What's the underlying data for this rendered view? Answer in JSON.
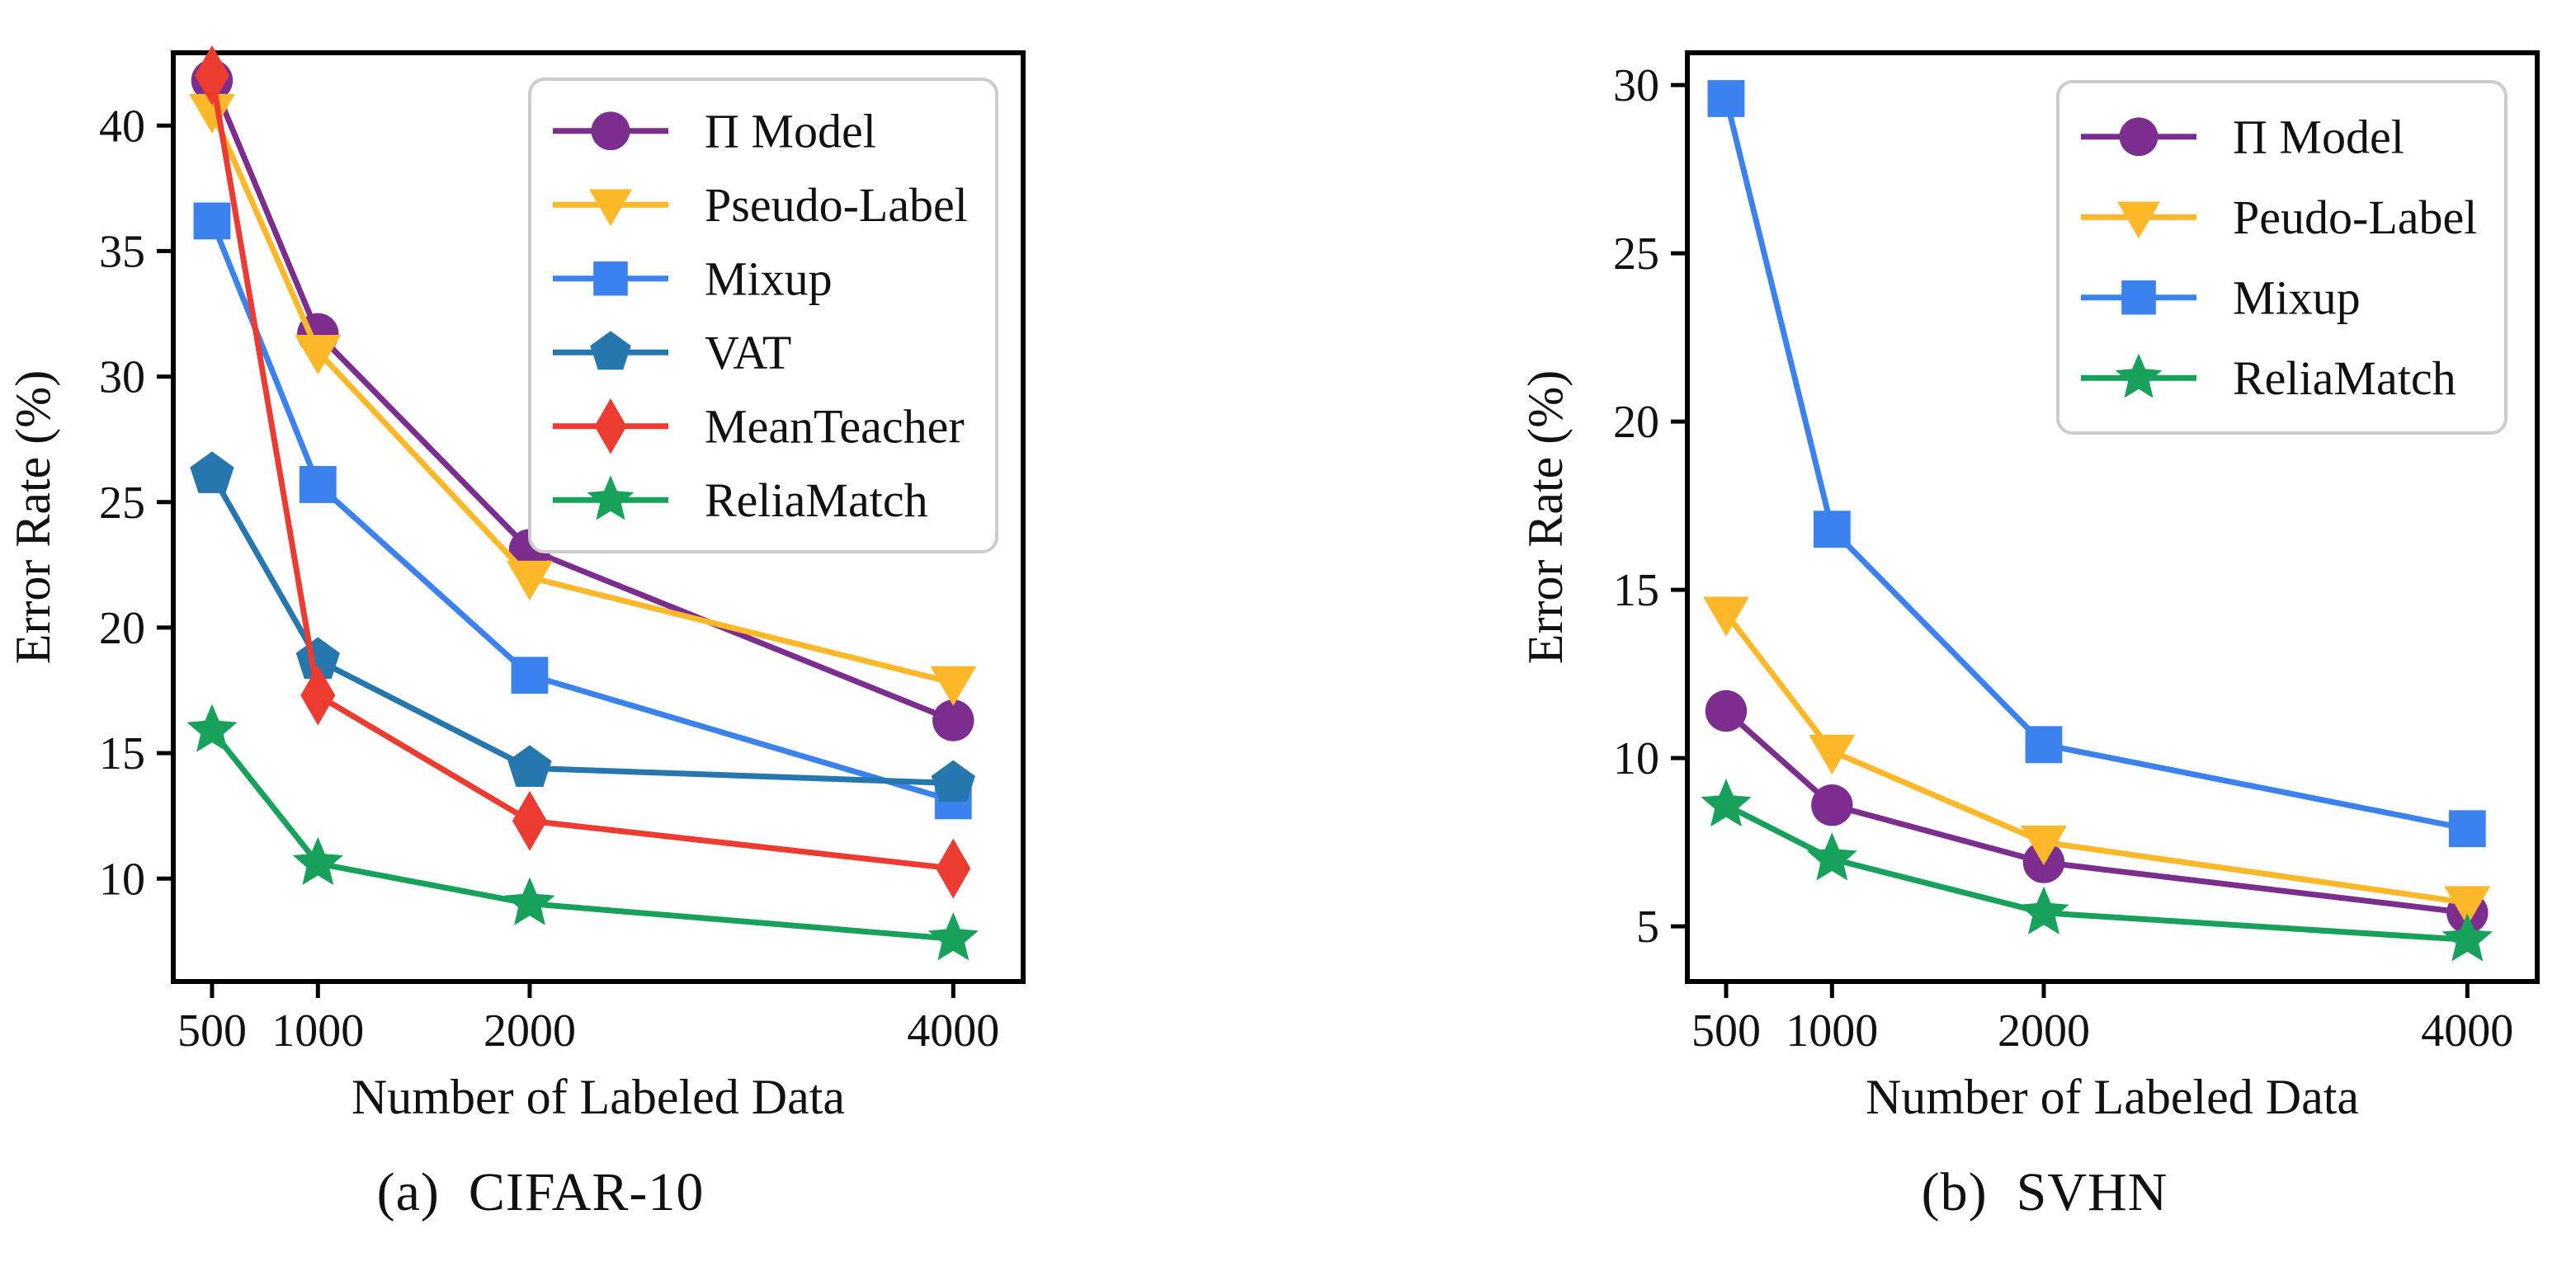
{
  "figure": {
    "captions": {
      "left": "(a)  CIFAR-10",
      "right": "(b)  SVHN"
    }
  },
  "chart_data": [
    {
      "id": "cifar10",
      "type": "line",
      "title": "(a) CIFAR-10",
      "xlabel": "Number of Labeled Data",
      "ylabel": "Error Rate (%)",
      "x": [
        500,
        1000,
        2000,
        4000
      ],
      "xtick_labels": [
        "500",
        "1000",
        "2000",
        "4000"
      ],
      "yticks": [
        10,
        15,
        20,
        25,
        30,
        35,
        40
      ],
      "xlim": [
        317,
        4330
      ],
      "ylim": [
        5.9,
        42.9
      ],
      "grid": false,
      "legend_position": "upper right",
      "series": [
        {
          "name": "Π Model",
          "marker": "circle",
          "color": "#7B2E8E",
          "values": [
            41.8,
            31.7,
            23.1,
            16.3
          ]
        },
        {
          "name": "Pseudo-Label",
          "marker": "triangle-down",
          "color": "#FDB82A",
          "values": [
            40.6,
            31.0,
            22.0,
            17.8
          ]
        },
        {
          "name": "Mixup",
          "marker": "square",
          "color": "#3B82EE",
          "values": [
            36.2,
            25.7,
            18.1,
            13.1
          ]
        },
        {
          "name": "VAT",
          "marker": "pentagon",
          "color": "#2577AE",
          "values": [
            26.1,
            18.7,
            14.4,
            13.8
          ]
        },
        {
          "name": "MeanTeacher",
          "marker": "diamond",
          "color": "#EC3B31",
          "values": [
            42.0,
            17.3,
            12.3,
            10.4
          ]
        },
        {
          "name": "ReliaMatch",
          "marker": "star",
          "color": "#17A15B",
          "values": [
            15.9,
            10.6,
            9.0,
            7.6
          ]
        }
      ]
    },
    {
      "id": "svhn",
      "type": "line",
      "title": "(b) SVHN",
      "xlabel": "Number of Labeled Data",
      "ylabel": "Error Rate (%)",
      "x": [
        500,
        1000,
        2000,
        4000
      ],
      "xtick_labels": [
        "500",
        "1000",
        "2000",
        "4000"
      ],
      "yticks": [
        5,
        10,
        15,
        20,
        25,
        30
      ],
      "xlim": [
        317,
        4330
      ],
      "ylim": [
        3.36,
        30.96
      ],
      "grid": false,
      "legend_position": "upper right",
      "series": [
        {
          "name": "Π Model",
          "marker": "circle",
          "color": "#7B2E8E",
          "values": [
            11.4,
            8.6,
            6.9,
            5.4
          ]
        },
        {
          "name": "Peudo-Label",
          "marker": "triangle-down",
          "color": "#FDB82A",
          "values": [
            14.3,
            10.2,
            7.5,
            5.7
          ]
        },
        {
          "name": "Mixup",
          "marker": "square",
          "color": "#3B82EE",
          "values": [
            29.6,
            16.8,
            10.4,
            7.9
          ]
        },
        {
          "name": "ReliaMatch",
          "marker": "star",
          "color": "#17A15B",
          "values": [
            8.6,
            7.0,
            5.4,
            4.6
          ]
        }
      ]
    }
  ],
  "style_colors": {
    "axis": "#000000",
    "text": "#111111",
    "legend_border": "#cccccc",
    "legend_bg": "#ffffff"
  }
}
